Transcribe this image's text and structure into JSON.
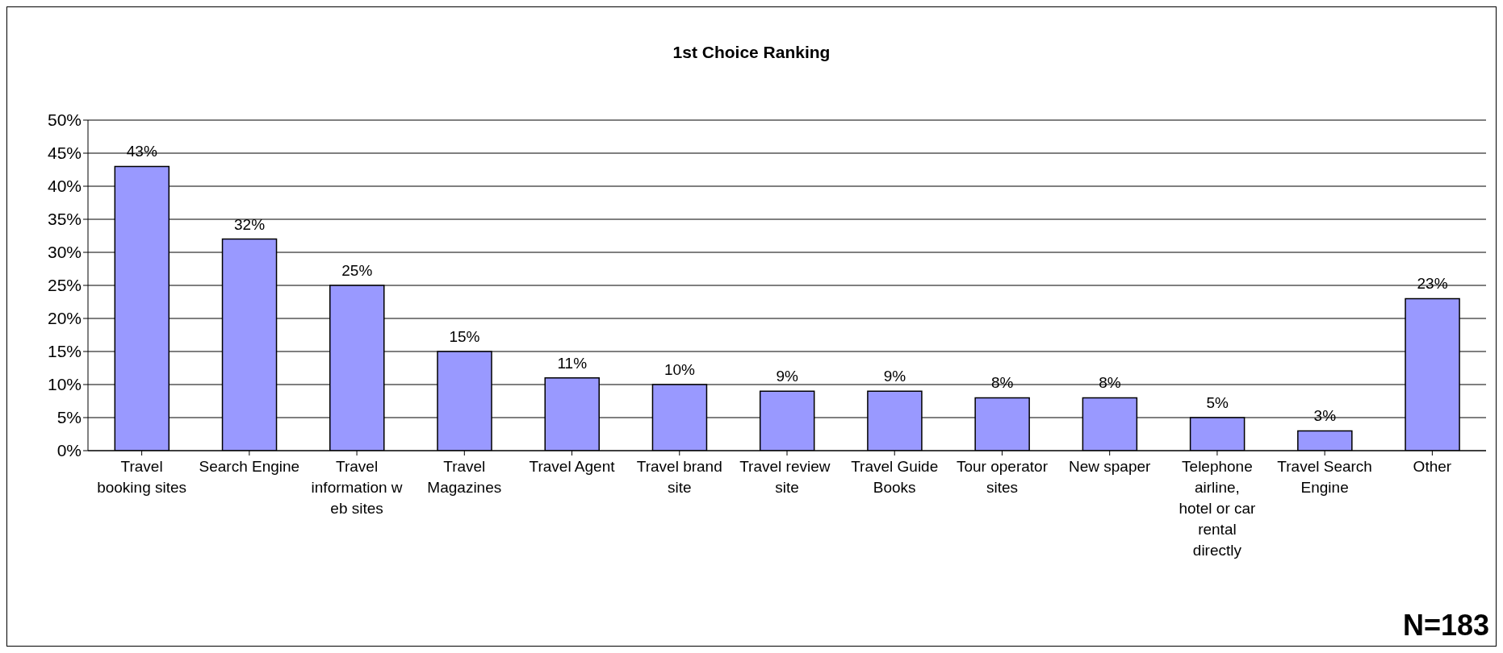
{
  "chart_data": {
    "type": "bar",
    "title": "1st Choice Ranking",
    "categories": [
      "Travel booking sites",
      "Search Engine",
      "Travel information w eb sites",
      "Travel Magazines",
      "Travel Agent",
      "Travel brand site",
      "Travel review  site",
      "Travel Guide Books",
      "Tour operator sites",
      "New spaper",
      "Telephone airline, hotel or car rental directly",
      "Travel Search Engine",
      "Other"
    ],
    "values": [
      43,
      32,
      25,
      15,
      11,
      10,
      9,
      9,
      8,
      8,
      5,
      3,
      23
    ],
    "value_labels": [
      "43%",
      "32%",
      "25%",
      "15%",
      "11%",
      "10%",
      "9%",
      "9%",
      "8%",
      "8%",
      "5%",
      "3%",
      "23%"
    ],
    "color": "#9999ff",
    "ylim": [
      0,
      50
    ],
    "yticks": [
      {
        "value": 0,
        "label": "0%"
      },
      {
        "value": 5,
        "label": "5%"
      },
      {
        "value": 10,
        "label": "10%"
      },
      {
        "value": 15,
        "label": "15%"
      },
      {
        "value": 20,
        "label": "20%"
      },
      {
        "value": 25,
        "label": "25%"
      },
      {
        "value": 30,
        "label": "30%"
      },
      {
        "value": 35,
        "label": "35%"
      },
      {
        "value": 40,
        "label": "40%"
      },
      {
        "value": 45,
        "label": "45%"
      },
      {
        "value": 50,
        "label": "50%"
      }
    ],
    "grid": "y",
    "legend": false,
    "annotations": [
      "N=183"
    ]
  }
}
